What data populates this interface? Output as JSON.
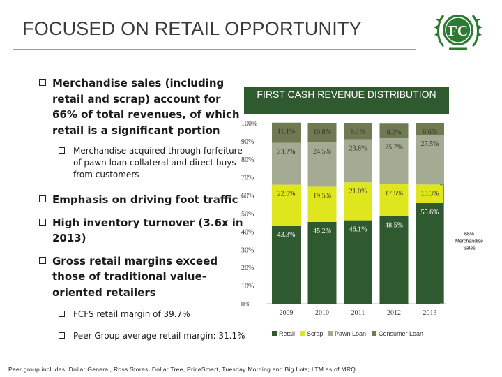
{
  "title": "FOCUSED ON RETAIL OPPORTUNITY",
  "logo": {
    "letters": "FC",
    "colors": {
      "primary": "#2d7a32",
      "light": "#ffffff"
    }
  },
  "bullets": [
    {
      "level": 1,
      "text": "Merchandise sales (including retail and scrap) account for 66% of total revenues, of which retail is a significant portion"
    },
    {
      "level": 2,
      "text": "Merchandise acquired through forfeiture of pawn loan collateral and direct buys from customers"
    },
    {
      "level": 1,
      "text": "Emphasis on driving foot traffic"
    },
    {
      "level": 1,
      "text": "High inventory turnover (3.6x in 2013)"
    },
    {
      "level": 1,
      "text": "Gross retail margins exceed those of traditional value-oriented retailers"
    },
    {
      "level": 2,
      "text": "FCFS retail margin of 39.7%"
    },
    {
      "level": 2,
      "text": "Peer Group average retail margin: 31.1%"
    }
  ],
  "chart_header": "FIRST CASH REVENUE DISTRIBUTION",
  "chart_data": {
    "type": "bar",
    "stacked": true,
    "title": "FIRST CASH REVENUE DISTRIBUTION",
    "categories": [
      "2009",
      "2010",
      "2011",
      "2012",
      "2013"
    ],
    "series": [
      {
        "name": "Retail",
        "color": "#2f5a2f",
        "values": [
          43.3,
          45.2,
          46.1,
          48.5,
          55.6
        ],
        "labels": [
          "43.3%",
          "45.2%",
          "46.1%",
          "48.5%",
          "55.6%"
        ]
      },
      {
        "name": "Scrap",
        "color": "#e0e61e",
        "values": [
          22.5,
          19.5,
          21.0,
          17.5,
          10.3
        ],
        "labels": [
          "22.5%",
          "19.5%",
          "21.0%",
          "17.5%",
          "10.3%"
        ]
      },
      {
        "name": "Pawn Loan",
        "color": "#a5ab93",
        "values": [
          23.2,
          24.5,
          23.8,
          25.7,
          27.5
        ],
        "labels": [
          "23.2%",
          "24.5%",
          "23.8%",
          "25.7%",
          "27.5%"
        ]
      },
      {
        "name": "Consumer Loan",
        "color": "#6f7a52",
        "values": [
          11.1,
          10.8,
          9.1,
          8.2,
          6.6
        ],
        "labels": [
          "11.1%",
          "10.8%",
          "9.1%",
          "8.2%",
          "6.6%"
        ]
      }
    ],
    "y_ticks": [
      "0%",
      "10%",
      "20%",
      "30%",
      "40%",
      "50%",
      "60%",
      "70%",
      "80%",
      "90%",
      "100%"
    ],
    "ylim": [
      0,
      100
    ],
    "legend": "bottom",
    "annotation": "66% Merchandise Sales"
  },
  "footnote": "Peer group includes: Dollar General, Ross Stores, Dollar Tree, PriceSmart, Tuesday Morning and Big Lots; LTM as of MRQ"
}
